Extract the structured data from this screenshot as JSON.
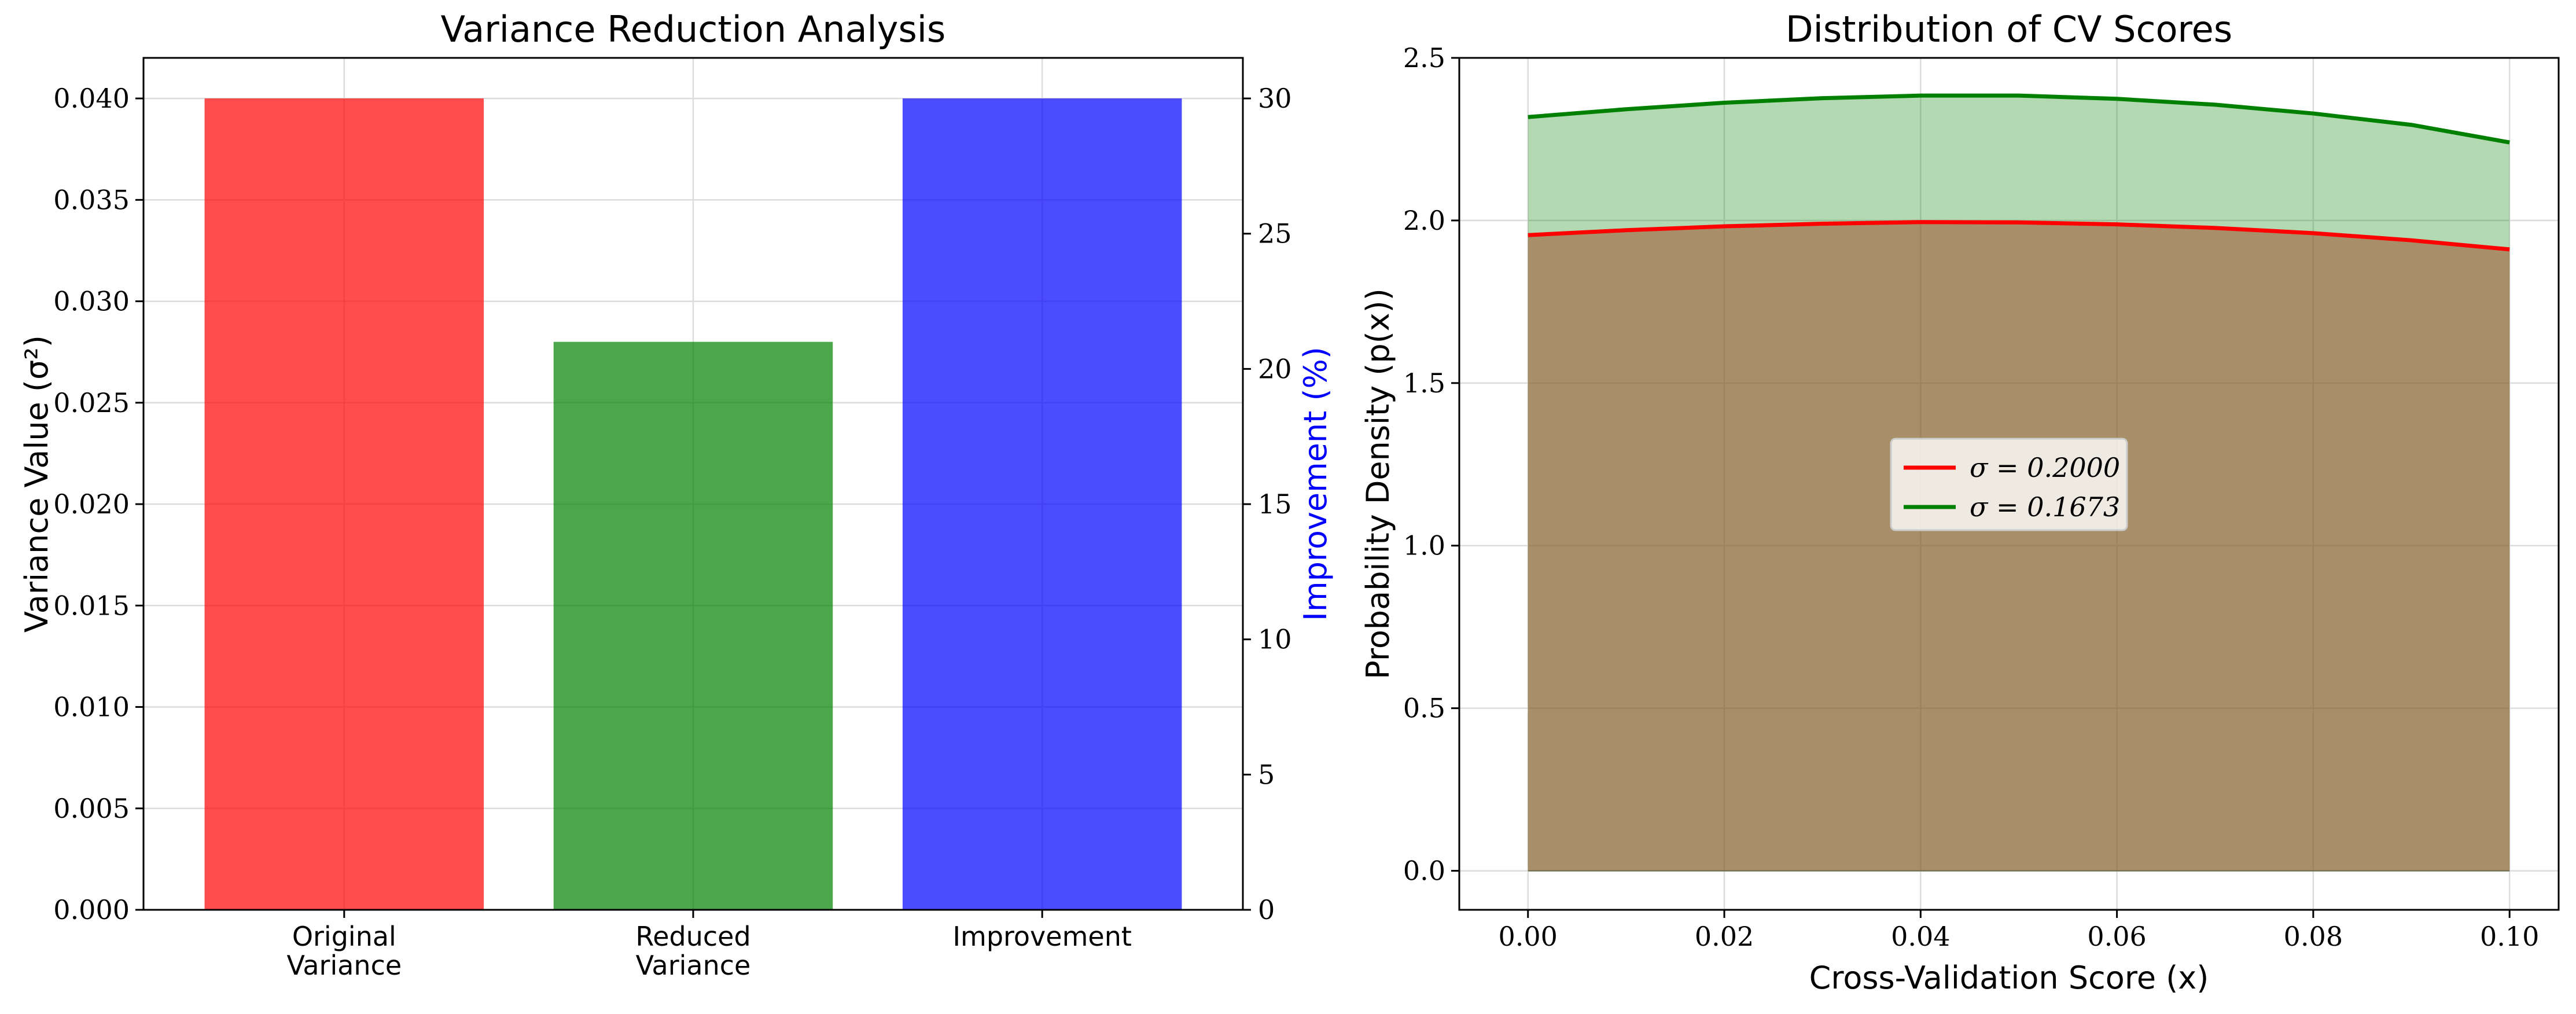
{
  "chart_data": [
    {
      "type": "bar",
      "title": "Variance Reduction Analysis",
      "xlabel": "",
      "ylabel": "Variance Value (σ²)",
      "ylabel_right": "Improvement (%)",
      "ylabel_right_color": "#0000ff",
      "categories": [
        "Original\nVariance",
        "Reduced\nVariance",
        "Improvement"
      ],
      "category_lines": [
        [
          "Original",
          "Variance"
        ],
        [
          "Reduced",
          "Variance"
        ],
        [
          "Improvement"
        ]
      ],
      "series": [
        {
          "axis": "left",
          "values": [
            0.04,
            0.028,
            null
          ],
          "colors": [
            "#ff0000",
            "#008000",
            null
          ]
        },
        {
          "axis": "right",
          "values": [
            null,
            null,
            30
          ],
          "colors": [
            null,
            null,
            "#0000ff"
          ]
        }
      ],
      "bar_alpha": 0.7,
      "ylim": [
        0,
        0.042
      ],
      "ylim_right": [
        0,
        31.5
      ],
      "yticks": [
        "0.000",
        "0.005",
        "0.010",
        "0.015",
        "0.020",
        "0.025",
        "0.030",
        "0.035",
        "0.040"
      ],
      "yticks_right": [
        "0",
        "5",
        "10",
        "15",
        "20",
        "25",
        "30"
      ],
      "grid": true
    },
    {
      "type": "area",
      "title": "Distribution of CV Scores",
      "xlabel": "Cross-Validation Score (x)",
      "ylabel": "Probability Density (p(x))",
      "xlim": [
        -0.007,
        0.105
      ],
      "ylim": [
        -0.12,
        2.5
      ],
      "xticks": [
        "0.00",
        "0.02",
        "0.04",
        "0.06",
        "0.08",
        "0.10"
      ],
      "yticks": [
        "0.0",
        "0.5",
        "1.0",
        "1.5",
        "2.0",
        "2.5"
      ],
      "grid": true,
      "legend_position": "center",
      "series": [
        {
          "name": "σ = 0.2000",
          "color": "#ff0000",
          "fill": "#a0522d",
          "x": [
            0.0,
            0.01,
            0.02,
            0.03,
            0.04,
            0.05,
            0.06,
            0.07,
            0.08,
            0.09,
            0.1
          ],
          "y": [
            1.955,
            1.97,
            1.982,
            1.99,
            1.995,
            1.994,
            1.988,
            1.977,
            1.961,
            1.939,
            1.911
          ]
        },
        {
          "name": "σ = 0.1673",
          "color": "#008000",
          "fill": "#008000",
          "x": [
            0.0,
            0.01,
            0.02,
            0.03,
            0.04,
            0.05,
            0.06,
            0.07,
            0.08,
            0.09,
            0.1
          ],
          "y": [
            2.318,
            2.342,
            2.362,
            2.376,
            2.384,
            2.384,
            2.374,
            2.356,
            2.329,
            2.294,
            2.24
          ]
        }
      ]
    }
  ]
}
